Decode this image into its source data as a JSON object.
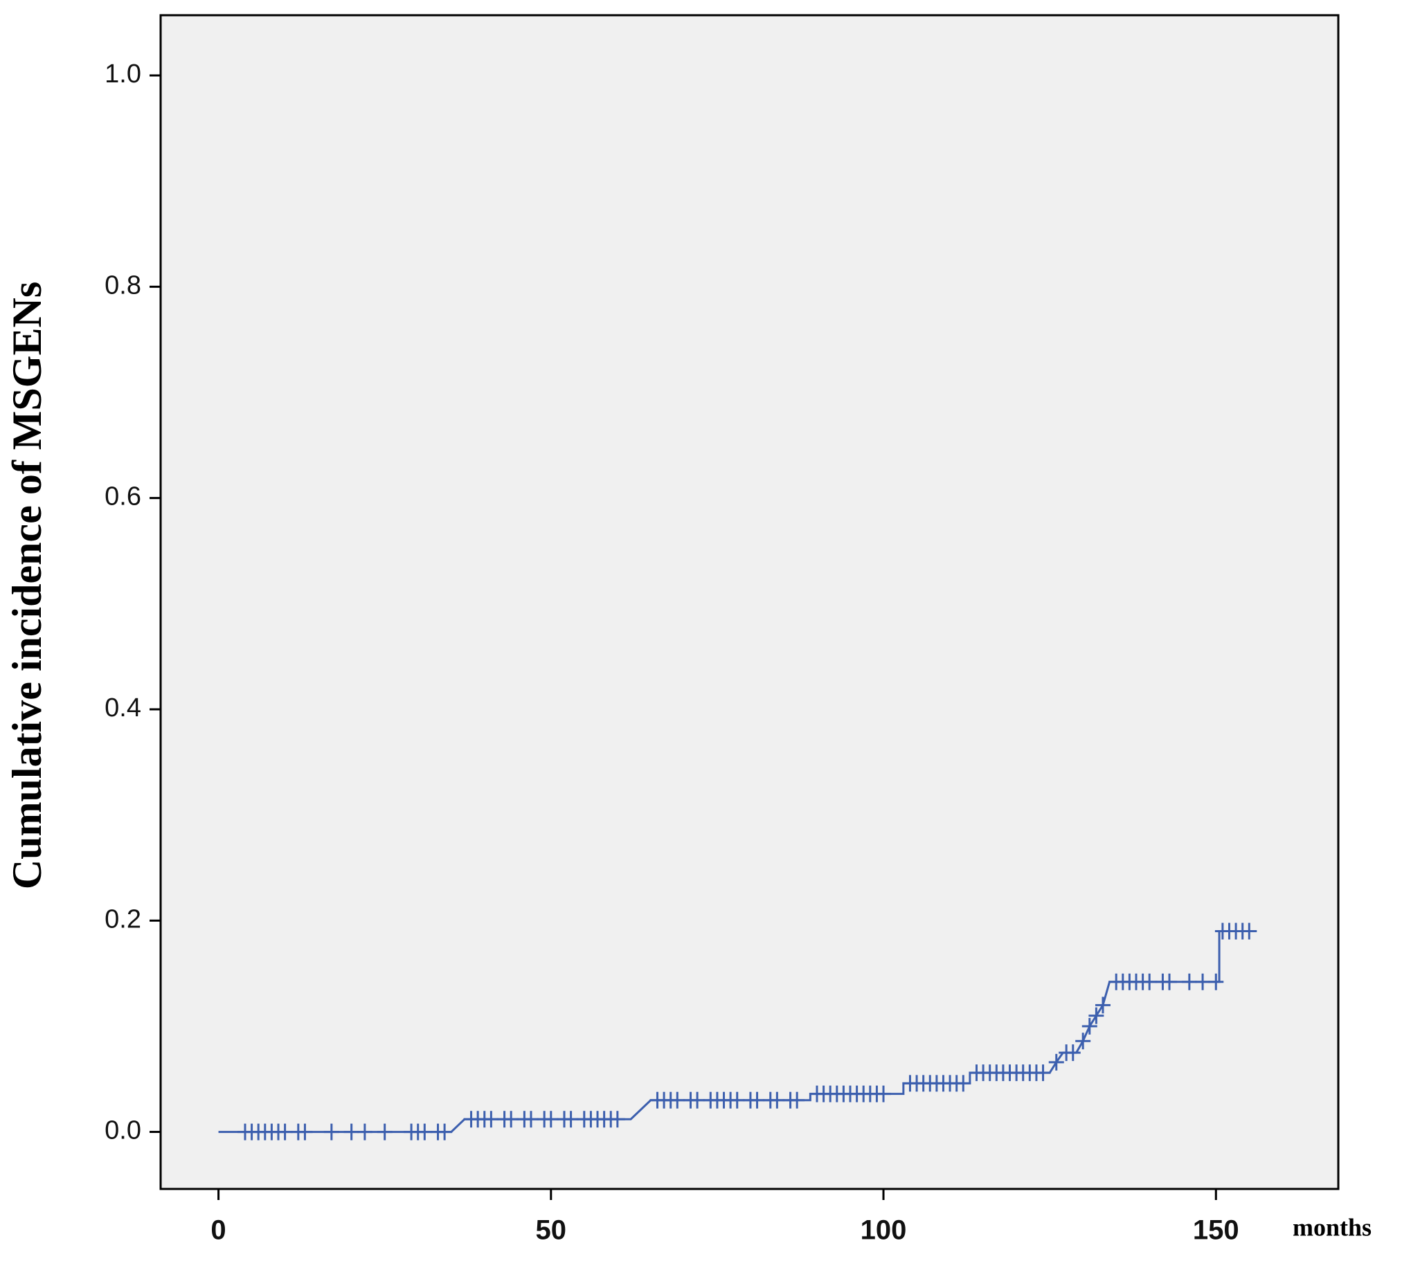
{
  "chart_data": {
    "type": "step-line",
    "y_label": "Cumulative incidence of MSGENs",
    "x_label": "months",
    "xlim": [
      -8.7,
      168.4
    ],
    "ylim": [
      -0.054,
      1.057
    ],
    "xticks": [
      0,
      50,
      100,
      150
    ],
    "yticks": [
      {
        "value": 0,
        "label": "0.0"
      },
      0.2,
      0.4,
      0.6,
      0.8,
      {
        "value": 1,
        "label": "1.0"
      }
    ],
    "background": "#f0f0f0",
    "series": [
      {
        "color": "#3c5fae",
        "x": [
          0,
          35,
          36,
          37,
          62,
          65,
          89,
          89,
          103,
          103,
          113,
          113,
          125,
          126,
          127,
          129,
          130,
          131,
          133,
          134,
          150.5,
          150.5,
          156
        ],
        "values": [
          0,
          0,
          0.006,
          0.012,
          0.012,
          0.03,
          0.03,
          0.036,
          0.036,
          0.046,
          0.046,
          0.056,
          0.056,
          0.066,
          0.075,
          0.075,
          0.086,
          0.1,
          0.12,
          0.142,
          0.142,
          0.19,
          0.19
        ]
      },
      {
        "color": "#3c5fae",
        "marker": "plus",
        "x": [
          4,
          5,
          6,
          7,
          8,
          9,
          10,
          12,
          13,
          17,
          20,
          22,
          25,
          29,
          30,
          31,
          33,
          34,
          38,
          39,
          40,
          41,
          43,
          44,
          46,
          47,
          49,
          50,
          52,
          53,
          55,
          56,
          57,
          58,
          59,
          60,
          66,
          67,
          68,
          69,
          71,
          72,
          74,
          75,
          76,
          77,
          78,
          80,
          81,
          83,
          84,
          86,
          87,
          90,
          91,
          92,
          93,
          94,
          95,
          96,
          97,
          98,
          99,
          100,
          104,
          105,
          106,
          107,
          108,
          109,
          110,
          111,
          112,
          114,
          115,
          116,
          117,
          118,
          119,
          120,
          121,
          122,
          123,
          124,
          126,
          127.5,
          128.5,
          130,
          131,
          132,
          133,
          135,
          136,
          137,
          138,
          139,
          140,
          142,
          143,
          146,
          148,
          150,
          151,
          152,
          153,
          154,
          155
        ],
        "values": [
          0,
          0,
          0,
          0,
          0,
          0,
          0,
          0,
          0,
          0,
          0,
          0,
          0,
          0,
          0,
          0,
          0,
          0,
          0.012,
          0.012,
          0.012,
          0.012,
          0.012,
          0.012,
          0.012,
          0.012,
          0.012,
          0.012,
          0.012,
          0.012,
          0.012,
          0.012,
          0.012,
          0.012,
          0.012,
          0.012,
          0.03,
          0.03,
          0.03,
          0.03,
          0.03,
          0.03,
          0.03,
          0.03,
          0.03,
          0.03,
          0.03,
          0.03,
          0.03,
          0.03,
          0.03,
          0.03,
          0.03,
          0.036,
          0.036,
          0.036,
          0.036,
          0.036,
          0.036,
          0.036,
          0.036,
          0.036,
          0.036,
          0.036,
          0.046,
          0.046,
          0.046,
          0.046,
          0.046,
          0.046,
          0.046,
          0.046,
          0.046,
          0.056,
          0.056,
          0.056,
          0.056,
          0.056,
          0.056,
          0.056,
          0.056,
          0.056,
          0.056,
          0.056,
          0.066,
          0.075,
          0.075,
          0.086,
          0.1,
          0.11,
          0.12,
          0.142,
          0.142,
          0.142,
          0.142,
          0.142,
          0.142,
          0.142,
          0.142,
          0.142,
          0.142,
          0.142,
          0.19,
          0.19,
          0.19,
          0.19,
          0.19
        ]
      }
    ]
  }
}
